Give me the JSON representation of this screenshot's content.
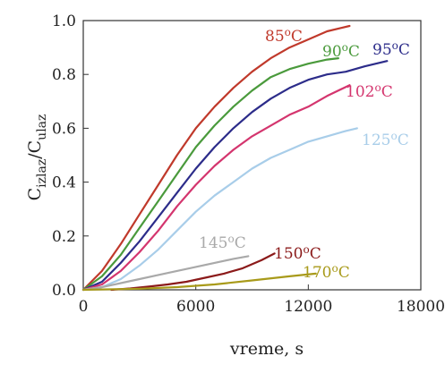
{
  "chart_data": {
    "type": "line",
    "title": "",
    "xlabel": "vreme, s",
    "ylabel": {
      "main": "C",
      "sub1": "izlaz",
      "sep": "/C",
      "sub2": "ulaz"
    },
    "xlim": [
      0,
      18000
    ],
    "ylim": [
      0,
      1.0
    ],
    "xticks": [
      0,
      6000,
      12000,
      18000
    ],
    "xtick_labels": [
      "0",
      "6000",
      "12000",
      "18000"
    ],
    "yticks": [
      0,
      0.2,
      0.4,
      0.6,
      0.8,
      1.0
    ],
    "ytick_labels": [
      "0.0",
      "0.2",
      "0.4",
      "0.6",
      "0.8",
      "1.0"
    ],
    "grid": false,
    "legend": "none",
    "series": [
      {
        "name": "85°C",
        "label": {
          "num": "85",
          "deg": "o",
          "unit": "C"
        },
        "color": "#c0392b",
        "points": [
          [
            0,
            0
          ],
          [
            1000,
            0.07
          ],
          [
            2000,
            0.17
          ],
          [
            3000,
            0.28
          ],
          [
            4000,
            0.39
          ],
          [
            5000,
            0.5
          ],
          [
            6000,
            0.6
          ],
          [
            7000,
            0.68
          ],
          [
            8000,
            0.75
          ],
          [
            9000,
            0.81
          ],
          [
            10000,
            0.86
          ],
          [
            11000,
            0.9
          ],
          [
            12000,
            0.93
          ],
          [
            13000,
            0.96
          ],
          [
            14200,
            0.98
          ]
        ]
      },
      {
        "name": "90°C",
        "label": {
          "num": "90",
          "deg": "o",
          "unit": "C"
        },
        "color": "#4a9a3c",
        "points": [
          [
            0,
            0
          ],
          [
            1000,
            0.05
          ],
          [
            2000,
            0.13
          ],
          [
            3000,
            0.23
          ],
          [
            4000,
            0.33
          ],
          [
            5000,
            0.43
          ],
          [
            6000,
            0.53
          ],
          [
            7000,
            0.61
          ],
          [
            8000,
            0.68
          ],
          [
            9000,
            0.74
          ],
          [
            10000,
            0.79
          ],
          [
            11000,
            0.82
          ],
          [
            12000,
            0.84
          ],
          [
            13000,
            0.855
          ],
          [
            13600,
            0.86
          ]
        ]
      },
      {
        "name": "95°C",
        "label": {
          "num": "95",
          "deg": "o",
          "unit": "C"
        },
        "color": "#2c2c8a",
        "points": [
          [
            0,
            0
          ],
          [
            1000,
            0.03
          ],
          [
            2000,
            0.1
          ],
          [
            3000,
            0.18
          ],
          [
            4000,
            0.27
          ],
          [
            5000,
            0.36
          ],
          [
            6000,
            0.45
          ],
          [
            7000,
            0.53
          ],
          [
            8000,
            0.6
          ],
          [
            9000,
            0.66
          ],
          [
            10000,
            0.71
          ],
          [
            11000,
            0.75
          ],
          [
            12000,
            0.78
          ],
          [
            13000,
            0.8
          ],
          [
            14000,
            0.81
          ],
          [
            15000,
            0.83
          ],
          [
            16200,
            0.85
          ]
        ]
      },
      {
        "name": "102°C",
        "label": {
          "num": "102",
          "deg": "o",
          "unit": "C"
        },
        "color": "#d4356e",
        "points": [
          [
            0,
            0
          ],
          [
            1000,
            0.02
          ],
          [
            2000,
            0.07
          ],
          [
            3000,
            0.14
          ],
          [
            4000,
            0.22
          ],
          [
            5000,
            0.31
          ],
          [
            6000,
            0.39
          ],
          [
            7000,
            0.46
          ],
          [
            8000,
            0.52
          ],
          [
            9000,
            0.57
          ],
          [
            10000,
            0.61
          ],
          [
            11000,
            0.65
          ],
          [
            12000,
            0.68
          ],
          [
            13000,
            0.72
          ],
          [
            14200,
            0.76
          ]
        ]
      },
      {
        "name": "125°C",
        "label": {
          "num": "125",
          "deg": "o",
          "unit": "C"
        },
        "color": "#a8cde9",
        "points": [
          [
            0,
            0
          ],
          [
            1000,
            0.01
          ],
          [
            2000,
            0.04
          ],
          [
            3000,
            0.09
          ],
          [
            4000,
            0.15
          ],
          [
            5000,
            0.22
          ],
          [
            6000,
            0.29
          ],
          [
            7000,
            0.35
          ],
          [
            8000,
            0.4
          ],
          [
            9000,
            0.45
          ],
          [
            10000,
            0.49
          ],
          [
            11000,
            0.52
          ],
          [
            12000,
            0.55
          ],
          [
            13000,
            0.57
          ],
          [
            14000,
            0.59
          ],
          [
            14600,
            0.6
          ]
        ]
      },
      {
        "name": "145°C",
        "label": {
          "num": "145",
          "deg": "o",
          "unit": "C"
        },
        "color": "#a9a9a9",
        "points": [
          [
            0,
            0
          ],
          [
            1000,
            0.01
          ],
          [
            2000,
            0.025
          ],
          [
            3000,
            0.04
          ],
          [
            4000,
            0.055
          ],
          [
            5000,
            0.07
          ],
          [
            6000,
            0.085
          ],
          [
            7000,
            0.1
          ],
          [
            8000,
            0.115
          ],
          [
            8800,
            0.125
          ]
        ]
      },
      {
        "name": "150°C",
        "label": {
          "num": "150",
          "deg": "o",
          "unit": "C"
        },
        "color": "#8b1a1a",
        "points": [
          [
            1500,
            0
          ],
          [
            2500,
            0.005
          ],
          [
            3500,
            0.012
          ],
          [
            4500,
            0.02
          ],
          [
            5500,
            0.03
          ],
          [
            6500,
            0.045
          ],
          [
            7500,
            0.06
          ],
          [
            8500,
            0.08
          ],
          [
            9500,
            0.11
          ],
          [
            10200,
            0.135
          ]
        ]
      },
      {
        "name": "170°C",
        "label": {
          "num": "170",
          "deg": "o",
          "unit": "C"
        },
        "color": "#a89a1a",
        "points": [
          [
            0,
            0
          ],
          [
            3000,
            0.004
          ],
          [
            5000,
            0.01
          ],
          [
            7000,
            0.02
          ],
          [
            9000,
            0.035
          ],
          [
            11000,
            0.05
          ],
          [
            12400,
            0.06
          ]
        ]
      }
    ]
  }
}
